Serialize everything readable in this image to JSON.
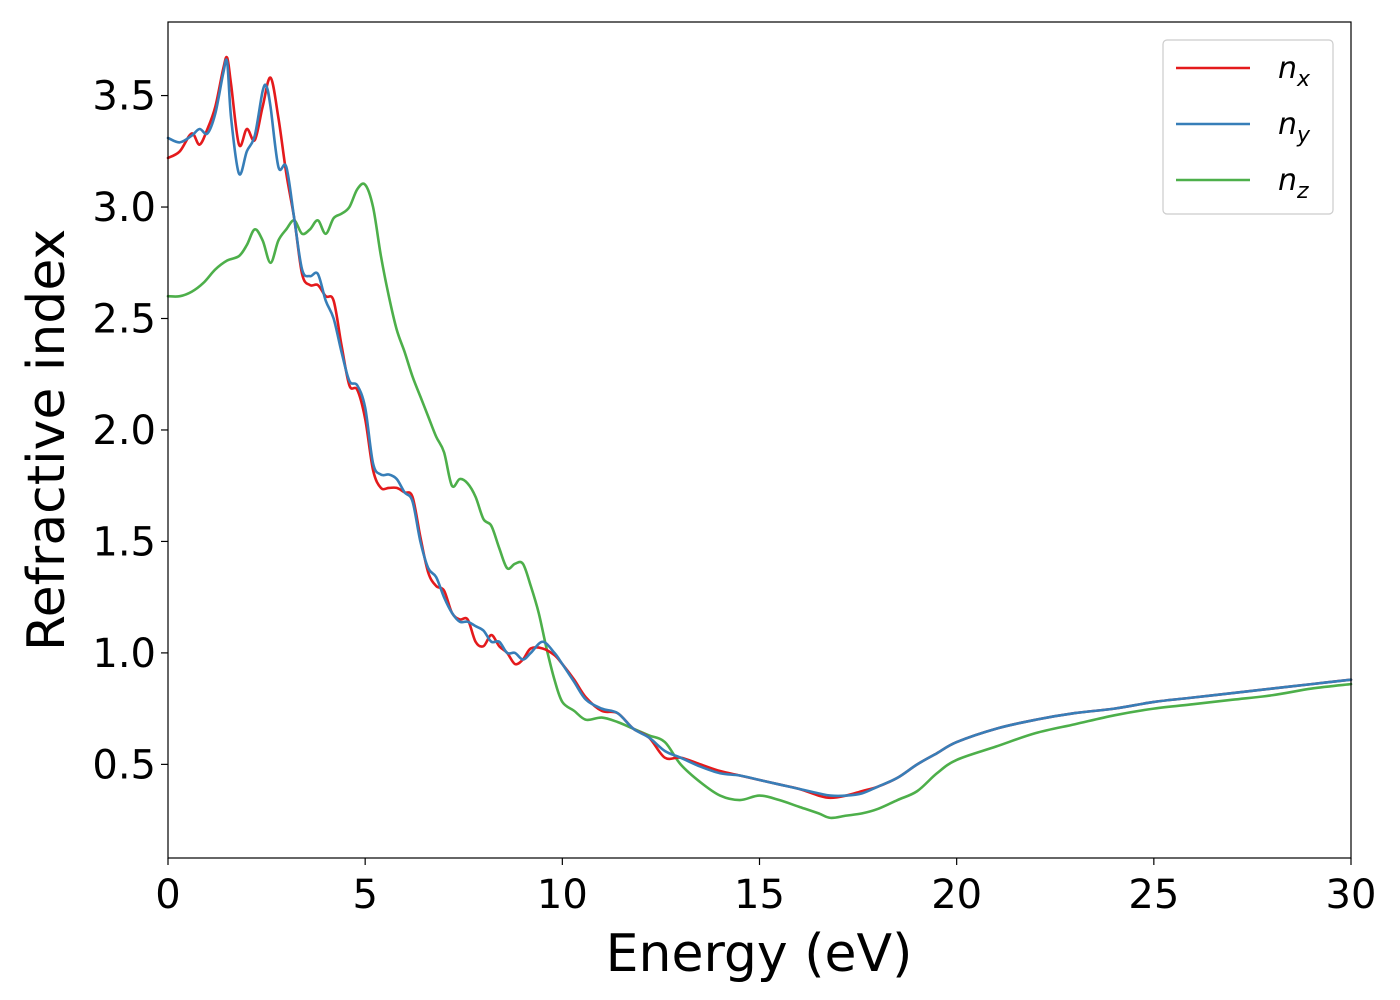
{
  "chart_data": {
    "type": "line",
    "xlabel": "Energy (eV)",
    "ylabel": "Refractive index",
    "xlim": [
      0,
      30
    ],
    "ylim": [
      0.08,
      3.83
    ],
    "xticks": [
      0,
      5,
      10,
      15,
      20,
      25,
      30
    ],
    "xtick_labels": [
      "0",
      "5",
      "10",
      "15",
      "20",
      "25",
      "30"
    ],
    "yticks": [
      0.5,
      1.0,
      1.5,
      2.0,
      2.5,
      3.0,
      3.5
    ],
    "ytick_labels": [
      "0.5",
      "1.0",
      "1.5",
      "2.0",
      "2.5",
      "3.0",
      "3.5"
    ],
    "grid": false,
    "legend_position": "top-right",
    "series": [
      {
        "name": "n_x",
        "label_base": "n",
        "label_sub": "x",
        "color": "#e41a1c",
        "x": [
          0,
          0.3,
          0.6,
          0.8,
          1.0,
          1.2,
          1.4,
          1.5,
          1.6,
          1.8,
          2.0,
          2.2,
          2.4,
          2.6,
          2.8,
          3.0,
          3.2,
          3.4,
          3.6,
          3.8,
          4.0,
          4.2,
          4.4,
          4.6,
          4.8,
          5.0,
          5.2,
          5.4,
          5.6,
          5.8,
          6.0,
          6.2,
          6.4,
          6.6,
          6.8,
          7.0,
          7.2,
          7.4,
          7.6,
          7.8,
          8.0,
          8.2,
          8.4,
          8.6,
          8.8,
          9.0,
          9.2,
          9.5,
          9.8,
          10.0,
          10.3,
          10.6,
          11.0,
          11.4,
          11.8,
          12.2,
          12.6,
          13.0,
          13.5,
          14.0,
          14.5,
          15.0,
          15.5,
          16.0,
          16.5,
          16.8,
          17.2,
          17.6,
          18.0,
          18.5,
          19.0,
          19.5,
          20.0,
          21.0,
          22.0,
          23.0,
          24.0,
          25.0,
          26.0,
          27.0,
          28.0,
          29.0,
          30.0
        ],
        "y": [
          3.22,
          3.25,
          3.33,
          3.28,
          3.35,
          3.45,
          3.62,
          3.67,
          3.55,
          3.28,
          3.35,
          3.3,
          3.45,
          3.58,
          3.4,
          3.15,
          2.95,
          2.7,
          2.65,
          2.65,
          2.6,
          2.58,
          2.38,
          2.2,
          2.18,
          2.05,
          1.82,
          1.74,
          1.74,
          1.74,
          1.72,
          1.7,
          1.52,
          1.36,
          1.3,
          1.28,
          1.18,
          1.15,
          1.15,
          1.05,
          1.03,
          1.08,
          1.03,
          1.0,
          0.95,
          0.97,
          1.02,
          1.02,
          0.99,
          0.95,
          0.88,
          0.8,
          0.74,
          0.73,
          0.66,
          0.62,
          0.53,
          0.53,
          0.5,
          0.47,
          0.45,
          0.43,
          0.41,
          0.39,
          0.36,
          0.35,
          0.36,
          0.38,
          0.4,
          0.44,
          0.5,
          0.55,
          0.6,
          0.66,
          0.7,
          0.73,
          0.75,
          0.78,
          0.8,
          0.82,
          0.84,
          0.86,
          0.88
        ]
      },
      {
        "name": "n_y",
        "label_base": "n",
        "label_sub": "y",
        "color": "#377eb8",
        "x": [
          0,
          0.3,
          0.6,
          0.8,
          1.0,
          1.2,
          1.4,
          1.5,
          1.6,
          1.8,
          2.0,
          2.2,
          2.4,
          2.5,
          2.6,
          2.8,
          3.0,
          3.2,
          3.4,
          3.6,
          3.8,
          4.0,
          4.2,
          4.4,
          4.6,
          4.8,
          5.0,
          5.2,
          5.4,
          5.6,
          5.8,
          6.0,
          6.2,
          6.4,
          6.6,
          6.8,
          7.0,
          7.2,
          7.4,
          7.6,
          7.8,
          8.0,
          8.2,
          8.4,
          8.6,
          8.8,
          9.0,
          9.2,
          9.5,
          9.8,
          10.0,
          10.3,
          10.6,
          11.0,
          11.4,
          11.8,
          12.2,
          12.6,
          13.0,
          13.5,
          14.0,
          14.5,
          15.0,
          15.5,
          16.0,
          16.5,
          16.8,
          17.2,
          17.6,
          18.0,
          18.5,
          19.0,
          19.5,
          20.0,
          21.0,
          22.0,
          23.0,
          24.0,
          25.0,
          26.0,
          27.0,
          28.0,
          29.0,
          30.0
        ],
        "y": [
          3.31,
          3.29,
          3.32,
          3.35,
          3.33,
          3.42,
          3.6,
          3.65,
          3.4,
          3.15,
          3.25,
          3.32,
          3.52,
          3.54,
          3.45,
          3.18,
          3.18,
          2.95,
          2.72,
          2.69,
          2.7,
          2.58,
          2.5,
          2.35,
          2.22,
          2.2,
          2.1,
          1.85,
          1.8,
          1.8,
          1.78,
          1.72,
          1.68,
          1.5,
          1.38,
          1.34,
          1.25,
          1.18,
          1.14,
          1.14,
          1.12,
          1.1,
          1.05,
          1.05,
          1.0,
          1.0,
          0.97,
          1.0,
          1.05,
          1.0,
          0.95,
          0.87,
          0.79,
          0.75,
          0.73,
          0.66,
          0.62,
          0.56,
          0.53,
          0.49,
          0.46,
          0.45,
          0.43,
          0.41,
          0.39,
          0.37,
          0.36,
          0.36,
          0.37,
          0.4,
          0.44,
          0.5,
          0.55,
          0.6,
          0.66,
          0.7,
          0.73,
          0.75,
          0.78,
          0.8,
          0.82,
          0.84,
          0.86,
          0.88
        ]
      },
      {
        "name": "n_z",
        "label_base": "n",
        "label_sub": "z",
        "color": "#4daf4a",
        "x": [
          0,
          0.3,
          0.6,
          0.9,
          1.2,
          1.5,
          1.8,
          2.0,
          2.2,
          2.4,
          2.6,
          2.8,
          3.0,
          3.2,
          3.4,
          3.6,
          3.8,
          4.0,
          4.2,
          4.4,
          4.6,
          4.8,
          5.0,
          5.2,
          5.4,
          5.6,
          5.8,
          6.0,
          6.2,
          6.4,
          6.6,
          6.8,
          7.0,
          7.2,
          7.4,
          7.6,
          7.8,
          8.0,
          8.2,
          8.4,
          8.6,
          8.8,
          9.0,
          9.2,
          9.4,
          9.6,
          9.8,
          10.0,
          10.3,
          10.6,
          11.0,
          11.4,
          11.8,
          12.2,
          12.6,
          13.0,
          13.5,
          14.0,
          14.5,
          15.0,
          15.5,
          16.0,
          16.5,
          16.8,
          17.2,
          17.6,
          18.0,
          18.5,
          19.0,
          19.5,
          20.0,
          21.0,
          22.0,
          23.0,
          24.0,
          25.0,
          26.0,
          27.0,
          28.0,
          29.0,
          30.0
        ],
        "y": [
          2.6,
          2.6,
          2.62,
          2.66,
          2.72,
          2.76,
          2.78,
          2.83,
          2.9,
          2.85,
          2.75,
          2.85,
          2.9,
          2.94,
          2.88,
          2.9,
          2.94,
          2.88,
          2.95,
          2.97,
          3.0,
          3.08,
          3.1,
          3.0,
          2.78,
          2.6,
          2.45,
          2.35,
          2.24,
          2.15,
          2.06,
          1.97,
          1.9,
          1.75,
          1.78,
          1.76,
          1.7,
          1.6,
          1.57,
          1.47,
          1.38,
          1.4,
          1.4,
          1.3,
          1.18,
          1.02,
          0.88,
          0.78,
          0.74,
          0.7,
          0.71,
          0.69,
          0.66,
          0.63,
          0.6,
          0.5,
          0.42,
          0.36,
          0.34,
          0.36,
          0.34,
          0.31,
          0.28,
          0.26,
          0.27,
          0.28,
          0.3,
          0.34,
          0.38,
          0.46,
          0.52,
          0.58,
          0.64,
          0.68,
          0.72,
          0.75,
          0.77,
          0.79,
          0.81,
          0.84,
          0.86
        ]
      }
    ]
  }
}
